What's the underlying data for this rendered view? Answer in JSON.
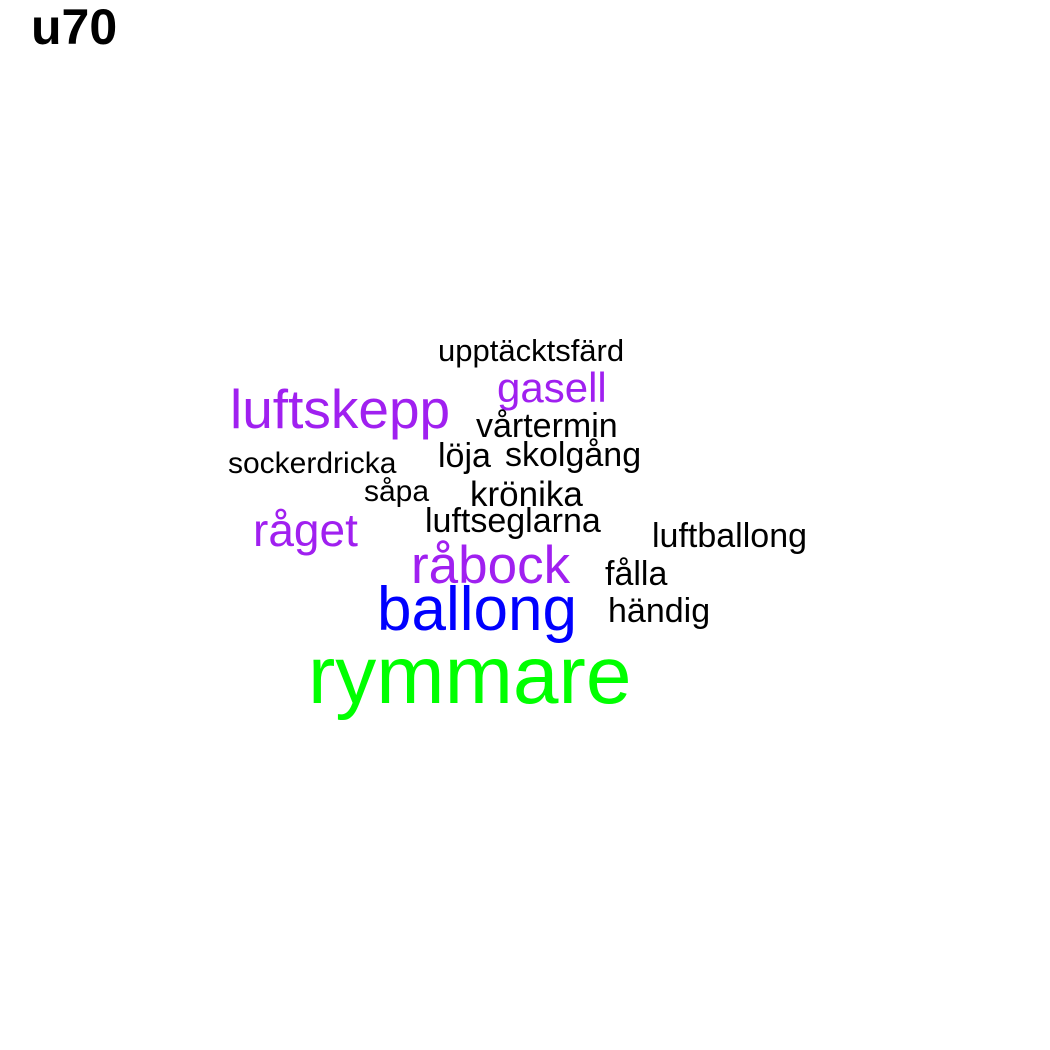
{
  "title": "u70",
  "colors": {
    "background": "#ffffff",
    "black": "#000000",
    "purple": "#a020f0",
    "blue": "#0000ff",
    "green": "#00ff00"
  },
  "words": [
    {
      "text": "upptäcktsfärd",
      "color": "#000000"
    },
    {
      "text": "gasell",
      "color": "#a020f0"
    },
    {
      "text": "luftskepp",
      "color": "#a020f0"
    },
    {
      "text": "vårtermin",
      "color": "#000000"
    },
    {
      "text": "löja",
      "color": "#000000"
    },
    {
      "text": "skolgång",
      "color": "#000000"
    },
    {
      "text": "sockerdricka",
      "color": "#000000"
    },
    {
      "text": "såpa",
      "color": "#000000"
    },
    {
      "text": "krönika",
      "color": "#000000"
    },
    {
      "text": "råget",
      "color": "#a020f0"
    },
    {
      "text": "luftseglarna",
      "color": "#000000"
    },
    {
      "text": "luftballong",
      "color": "#000000"
    },
    {
      "text": "råbock",
      "color": "#a020f0"
    },
    {
      "text": "fålla",
      "color": "#000000"
    },
    {
      "text": "ballong",
      "color": "#0000ff"
    },
    {
      "text": "händig",
      "color": "#000000"
    },
    {
      "text": "rymmare",
      "color": "#00ff00"
    }
  ]
}
